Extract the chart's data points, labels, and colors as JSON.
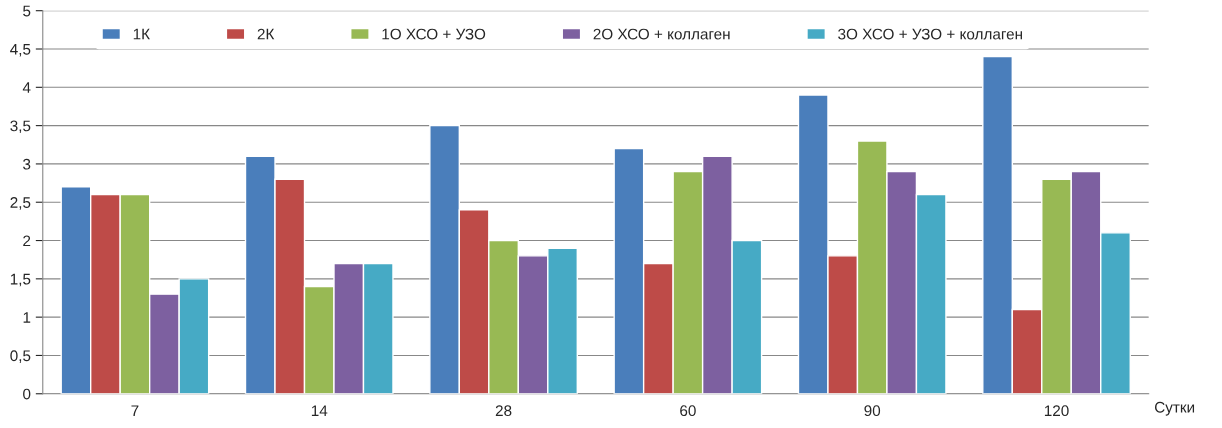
{
  "chart_data": {
    "type": "bar",
    "xlabel": "Сутки",
    "categories": [
      "7",
      "14",
      "28",
      "60",
      "90",
      "120"
    ],
    "series": [
      {
        "name": "1К",
        "color": "#4a7ebb",
        "values": [
          2.7,
          3.1,
          3.5,
          3.2,
          3.9,
          4.4
        ]
      },
      {
        "name": "2К",
        "color": "#be4b48",
        "values": [
          2.6,
          2.8,
          2.4,
          1.7,
          1.8,
          1.1
        ]
      },
      {
        "name": "1О ХСО + УЗО",
        "color": "#98b954",
        "values": [
          2.6,
          1.4,
          2.0,
          2.9,
          3.3,
          2.8
        ]
      },
      {
        "name": "2О ХСО + коллаген",
        "color": "#7d60a0",
        "values": [
          1.3,
          1.7,
          1.8,
          3.1,
          2.9,
          2.9
        ]
      },
      {
        "name": "3О ХСО + УЗО + коллаген",
        "color": "#46aac5",
        "values": [
          1.5,
          1.7,
          1.9,
          2.0,
          2.6,
          2.1
        ]
      }
    ],
    "ylim": [
      0,
      5
    ],
    "yticks": [
      0,
      {
        "value": 0.5,
        "label": "0,5"
      },
      1,
      {
        "value": 1.5,
        "label": "1,5"
      },
      2,
      {
        "value": 2.5,
        "label": "2,5"
      },
      3,
      {
        "value": 3.5,
        "label": "3,5"
      },
      4,
      {
        "value": 4.5,
        "label": "4,5"
      },
      5
    ],
    "grid": "y",
    "legend": "top"
  }
}
